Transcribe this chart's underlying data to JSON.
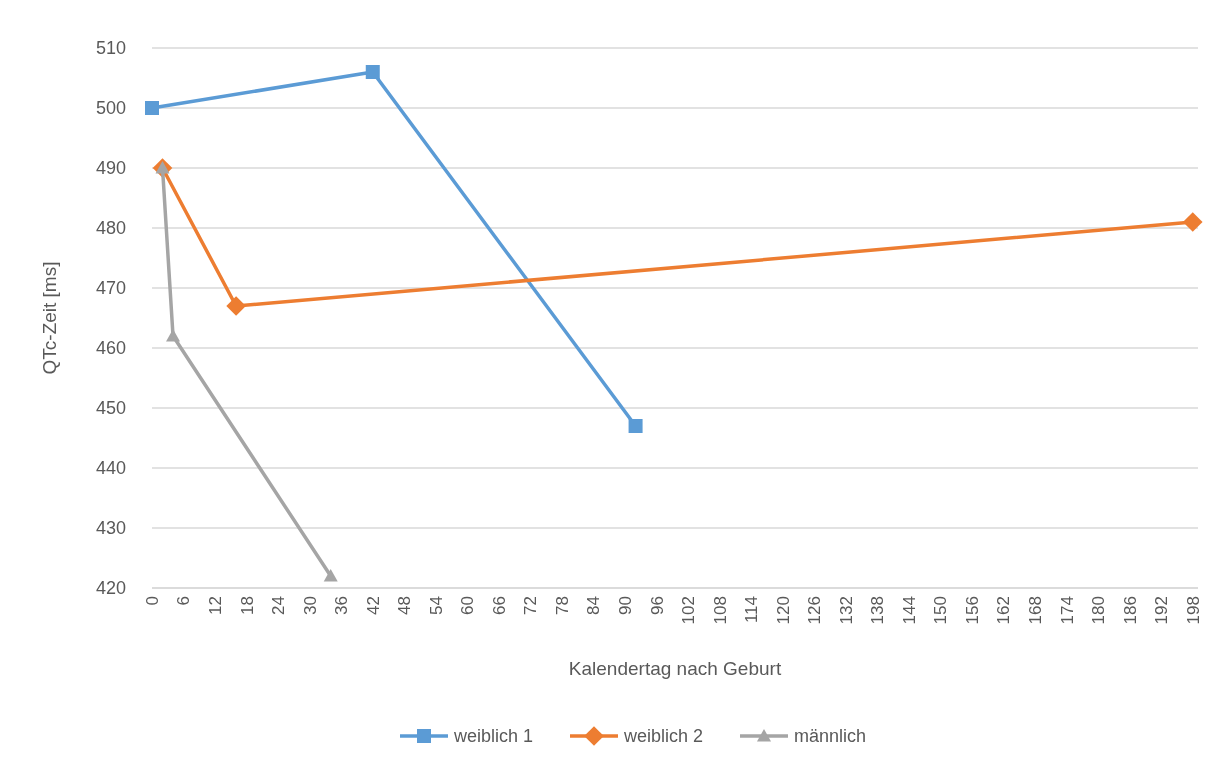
{
  "chart_data": {
    "type": "line",
    "xlabel": "Kalendertag nach Geburt",
    "ylabel": "QTc-Zeit [ms]",
    "xlim": [
      0,
      199
    ],
    "xticks": [
      0,
      6,
      12,
      18,
      24,
      30,
      36,
      42,
      48,
      54,
      60,
      66,
      72,
      78,
      84,
      90,
      96,
      102,
      108,
      114,
      120,
      126,
      132,
      138,
      144,
      150,
      156,
      162,
      168,
      174,
      180,
      186,
      192,
      198
    ],
    "ylim": [
      420,
      510
    ],
    "yticks": [
      420,
      430,
      440,
      450,
      460,
      470,
      480,
      490,
      500,
      510
    ],
    "grid": "y",
    "legend": "bottom",
    "line_style": "solid",
    "series": [
      {
        "name": "weiblich 1",
        "color": "#5b9bd5",
        "marker": "square",
        "x": [
          0,
          42,
          92
        ],
        "values": [
          500,
          506,
          447
        ]
      },
      {
        "name": "weiblich 2",
        "color": "#ed7d31",
        "marker": "diamond",
        "x": [
          2,
          16,
          198
        ],
        "values": [
          490,
          467,
          481
        ]
      },
      {
        "name": "männlich",
        "color": "#a5a5a5",
        "marker": "triangle",
        "x": [
          2,
          4,
          34
        ],
        "values": [
          490,
          462,
          422
        ]
      }
    ]
  }
}
